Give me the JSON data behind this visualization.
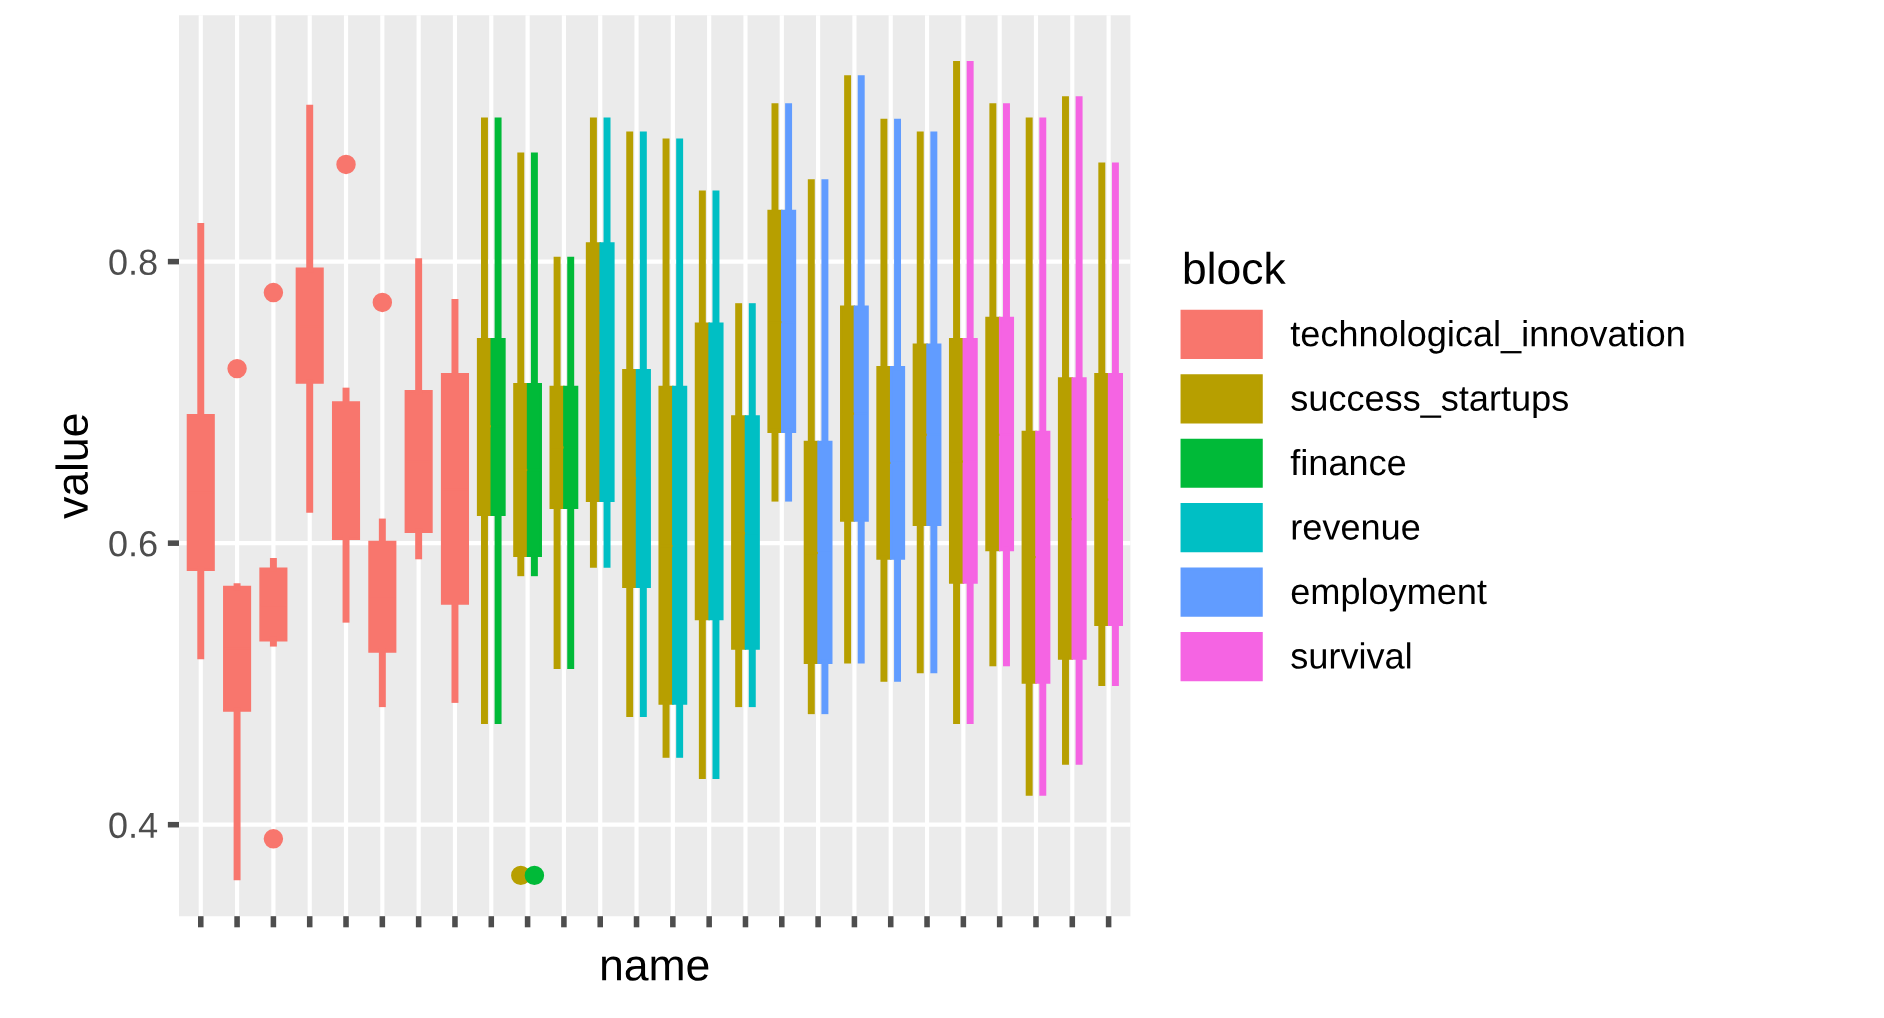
{
  "chart_data": {
    "type": "box",
    "xlabel": "name",
    "ylabel": "value",
    "legend_title": "block",
    "legend": "right",
    "grid": true,
    "marker": "circle",
    "categories": [
      null,
      null,
      null,
      null,
      null,
      null,
      null,
      null,
      null,
      null,
      null,
      null,
      null,
      null,
      null,
      null,
      null,
      null,
      null,
      null,
      null,
      null,
      null,
      null,
      null,
      null
    ],
    "ylim": [
      0.335,
      0.975
    ],
    "yticks": [
      0.4,
      0.6,
      0.8
    ],
    "series": [
      {
        "name": "technological_innovation",
        "color": "#f8766d",
        "boxes": [
          {
            "low": 0.52,
            "q1": 0.581,
            "median": 0.636,
            "q3": 0.691,
            "high": 0.825
          },
          {
            "low": 0.363,
            "q1": 0.481,
            "median": 0.525,
            "q3": 0.569,
            "high": 0.569,
            "outliers": [
              0.724
            ]
          },
          {
            "low": 0.529,
            "q1": 0.531,
            "median": 0.556,
            "q3": 0.582,
            "high": 0.587,
            "outliers": [
              0.778,
              0.39
            ]
          },
          {
            "low": 0.624,
            "q1": 0.714,
            "median": 0.754,
            "q3": 0.795,
            "high": 0.909
          },
          {
            "low": 0.546,
            "q1": 0.603,
            "median": 0.651,
            "q3": 0.7,
            "high": 0.708,
            "outliers": [
              0.869
            ]
          },
          {
            "low": 0.486,
            "q1": 0.523,
            "median": 0.562,
            "q3": 0.601,
            "high": 0.615,
            "outliers": [
              0.771
            ]
          },
          {
            "low": 0.591,
            "q1": 0.608,
            "median": 0.658,
            "q3": 0.708,
            "high": 0.8
          },
          {
            "low": 0.489,
            "q1": 0.557,
            "median": 0.638,
            "q3": 0.72,
            "high": 0.771
          },
          null,
          null,
          null,
          null,
          null,
          null,
          null,
          null,
          null,
          null,
          null,
          null,
          null,
          null,
          null,
          null,
          null,
          null
        ]
      },
      {
        "name": "success_startups",
        "color": "#b79f00",
        "boxes": [
          null,
          null,
          null,
          null,
          null,
          null,
          null,
          null,
          {
            "low": 0.474,
            "q1": 0.62,
            "median": 0.683,
            "q3": 0.745,
            "high": 0.9
          },
          {
            "low": 0.579,
            "q1": 0.591,
            "median": 0.652,
            "q3": 0.713,
            "high": 0.875,
            "outliers": [
              0.364
            ]
          },
          {
            "low": 0.513,
            "q1": 0.625,
            "median": 0.668,
            "q3": 0.711,
            "high": 0.801
          },
          {
            "low": 0.585,
            "q1": 0.63,
            "median": 0.721,
            "q3": 0.813,
            "high": 0.9
          },
          {
            "low": 0.479,
            "q1": 0.569,
            "median": 0.646,
            "q3": 0.723,
            "high": 0.89
          },
          {
            "low": 0.45,
            "q1": 0.486,
            "median": 0.598,
            "q3": 0.711,
            "high": 0.885
          },
          {
            "low": 0.435,
            "q1": 0.546,
            "median": 0.651,
            "q3": 0.756,
            "high": 0.848
          },
          {
            "low": 0.486,
            "q1": 0.525,
            "median": 0.607,
            "q3": 0.69,
            "high": 0.768
          },
          {
            "low": 0.632,
            "q1": 0.679,
            "median": 0.757,
            "q3": 0.836,
            "high": 0.91
          },
          {
            "low": 0.481,
            "q1": 0.515,
            "median": 0.593,
            "q3": 0.672,
            "high": 0.856
          },
          {
            "low": 0.517,
            "q1": 0.616,
            "median": 0.692,
            "q3": 0.768,
            "high": 0.93
          },
          {
            "low": 0.504,
            "q1": 0.589,
            "median": 0.657,
            "q3": 0.725,
            "high": 0.899
          },
          {
            "low": 0.51,
            "q1": 0.613,
            "median": 0.677,
            "q3": 0.741,
            "high": 0.89
          },
          {
            "low": 0.474,
            "q1": 0.572,
            "median": 0.658,
            "q3": 0.745,
            "high": 0.94
          },
          {
            "low": 0.515,
            "q1": 0.595,
            "median": 0.677,
            "q3": 0.76,
            "high": 0.91
          },
          {
            "low": 0.423,
            "q1": 0.501,
            "median": 0.59,
            "q3": 0.679,
            "high": 0.9
          },
          {
            "low": 0.445,
            "q1": 0.518,
            "median": 0.617,
            "q3": 0.717,
            "high": 0.915
          },
          {
            "low": 0.501,
            "q1": 0.542,
            "median": 0.631,
            "q3": 0.72,
            "high": 0.868
          }
        ]
      },
      {
        "name": "finance",
        "color": "#00ba38",
        "boxes": [
          null,
          null,
          null,
          null,
          null,
          null,
          null,
          null,
          {
            "low": 0.474,
            "q1": 0.62,
            "median": 0.683,
            "q3": 0.745,
            "high": 0.9
          },
          {
            "low": 0.579,
            "q1": 0.591,
            "median": 0.652,
            "q3": 0.713,
            "high": 0.875,
            "outliers": [
              0.364
            ]
          },
          {
            "low": 0.513,
            "q1": 0.625,
            "median": 0.668,
            "q3": 0.711,
            "high": 0.801
          },
          null,
          null,
          null,
          null,
          null,
          null,
          null,
          null,
          null,
          null,
          null,
          null,
          null,
          null,
          null
        ]
      },
      {
        "name": "revenue",
        "color": "#00bfc4",
        "boxes": [
          null,
          null,
          null,
          null,
          null,
          null,
          null,
          null,
          null,
          null,
          null,
          {
            "low": 0.585,
            "q1": 0.63,
            "median": 0.721,
            "q3": 0.813,
            "high": 0.9
          },
          {
            "low": 0.479,
            "q1": 0.569,
            "median": 0.646,
            "q3": 0.723,
            "high": 0.89
          },
          {
            "low": 0.45,
            "q1": 0.486,
            "median": 0.598,
            "q3": 0.711,
            "high": 0.885
          },
          {
            "low": 0.435,
            "q1": 0.546,
            "median": 0.651,
            "q3": 0.756,
            "high": 0.848
          },
          {
            "low": 0.486,
            "q1": 0.525,
            "median": 0.607,
            "q3": 0.69,
            "high": 0.768
          },
          null,
          null,
          null,
          null,
          null,
          null,
          null,
          null,
          null,
          null
        ]
      },
      {
        "name": "employment",
        "color": "#619cff",
        "boxes": [
          null,
          null,
          null,
          null,
          null,
          null,
          null,
          null,
          null,
          null,
          null,
          null,
          null,
          null,
          null,
          null,
          {
            "low": 0.632,
            "q1": 0.679,
            "median": 0.757,
            "q3": 0.836,
            "high": 0.91
          },
          {
            "low": 0.481,
            "q1": 0.515,
            "median": 0.593,
            "q3": 0.672,
            "high": 0.856
          },
          {
            "low": 0.517,
            "q1": 0.616,
            "median": 0.692,
            "q3": 0.768,
            "high": 0.93
          },
          {
            "low": 0.504,
            "q1": 0.589,
            "median": 0.657,
            "q3": 0.725,
            "high": 0.899
          },
          {
            "low": 0.51,
            "q1": 0.613,
            "median": 0.677,
            "q3": 0.741,
            "high": 0.89
          },
          null,
          null,
          null,
          null,
          null
        ]
      },
      {
        "name": "survival",
        "color": "#f564e3",
        "boxes": [
          null,
          null,
          null,
          null,
          null,
          null,
          null,
          null,
          null,
          null,
          null,
          null,
          null,
          null,
          null,
          null,
          null,
          null,
          null,
          null,
          null,
          {
            "low": 0.474,
            "q1": 0.572,
            "median": 0.658,
            "q3": 0.745,
            "high": 0.94
          },
          {
            "low": 0.515,
            "q1": 0.595,
            "median": 0.677,
            "q3": 0.76,
            "high": 0.91
          },
          {
            "low": 0.423,
            "q1": 0.501,
            "median": 0.59,
            "q3": 0.679,
            "high": 0.9
          },
          {
            "low": 0.445,
            "q1": 0.518,
            "median": 0.617,
            "q3": 0.717,
            "high": 0.915
          },
          {
            "low": 0.501,
            "q1": 0.542,
            "median": 0.631,
            "q3": 0.72,
            "high": 0.868
          }
        ]
      }
    ]
  }
}
